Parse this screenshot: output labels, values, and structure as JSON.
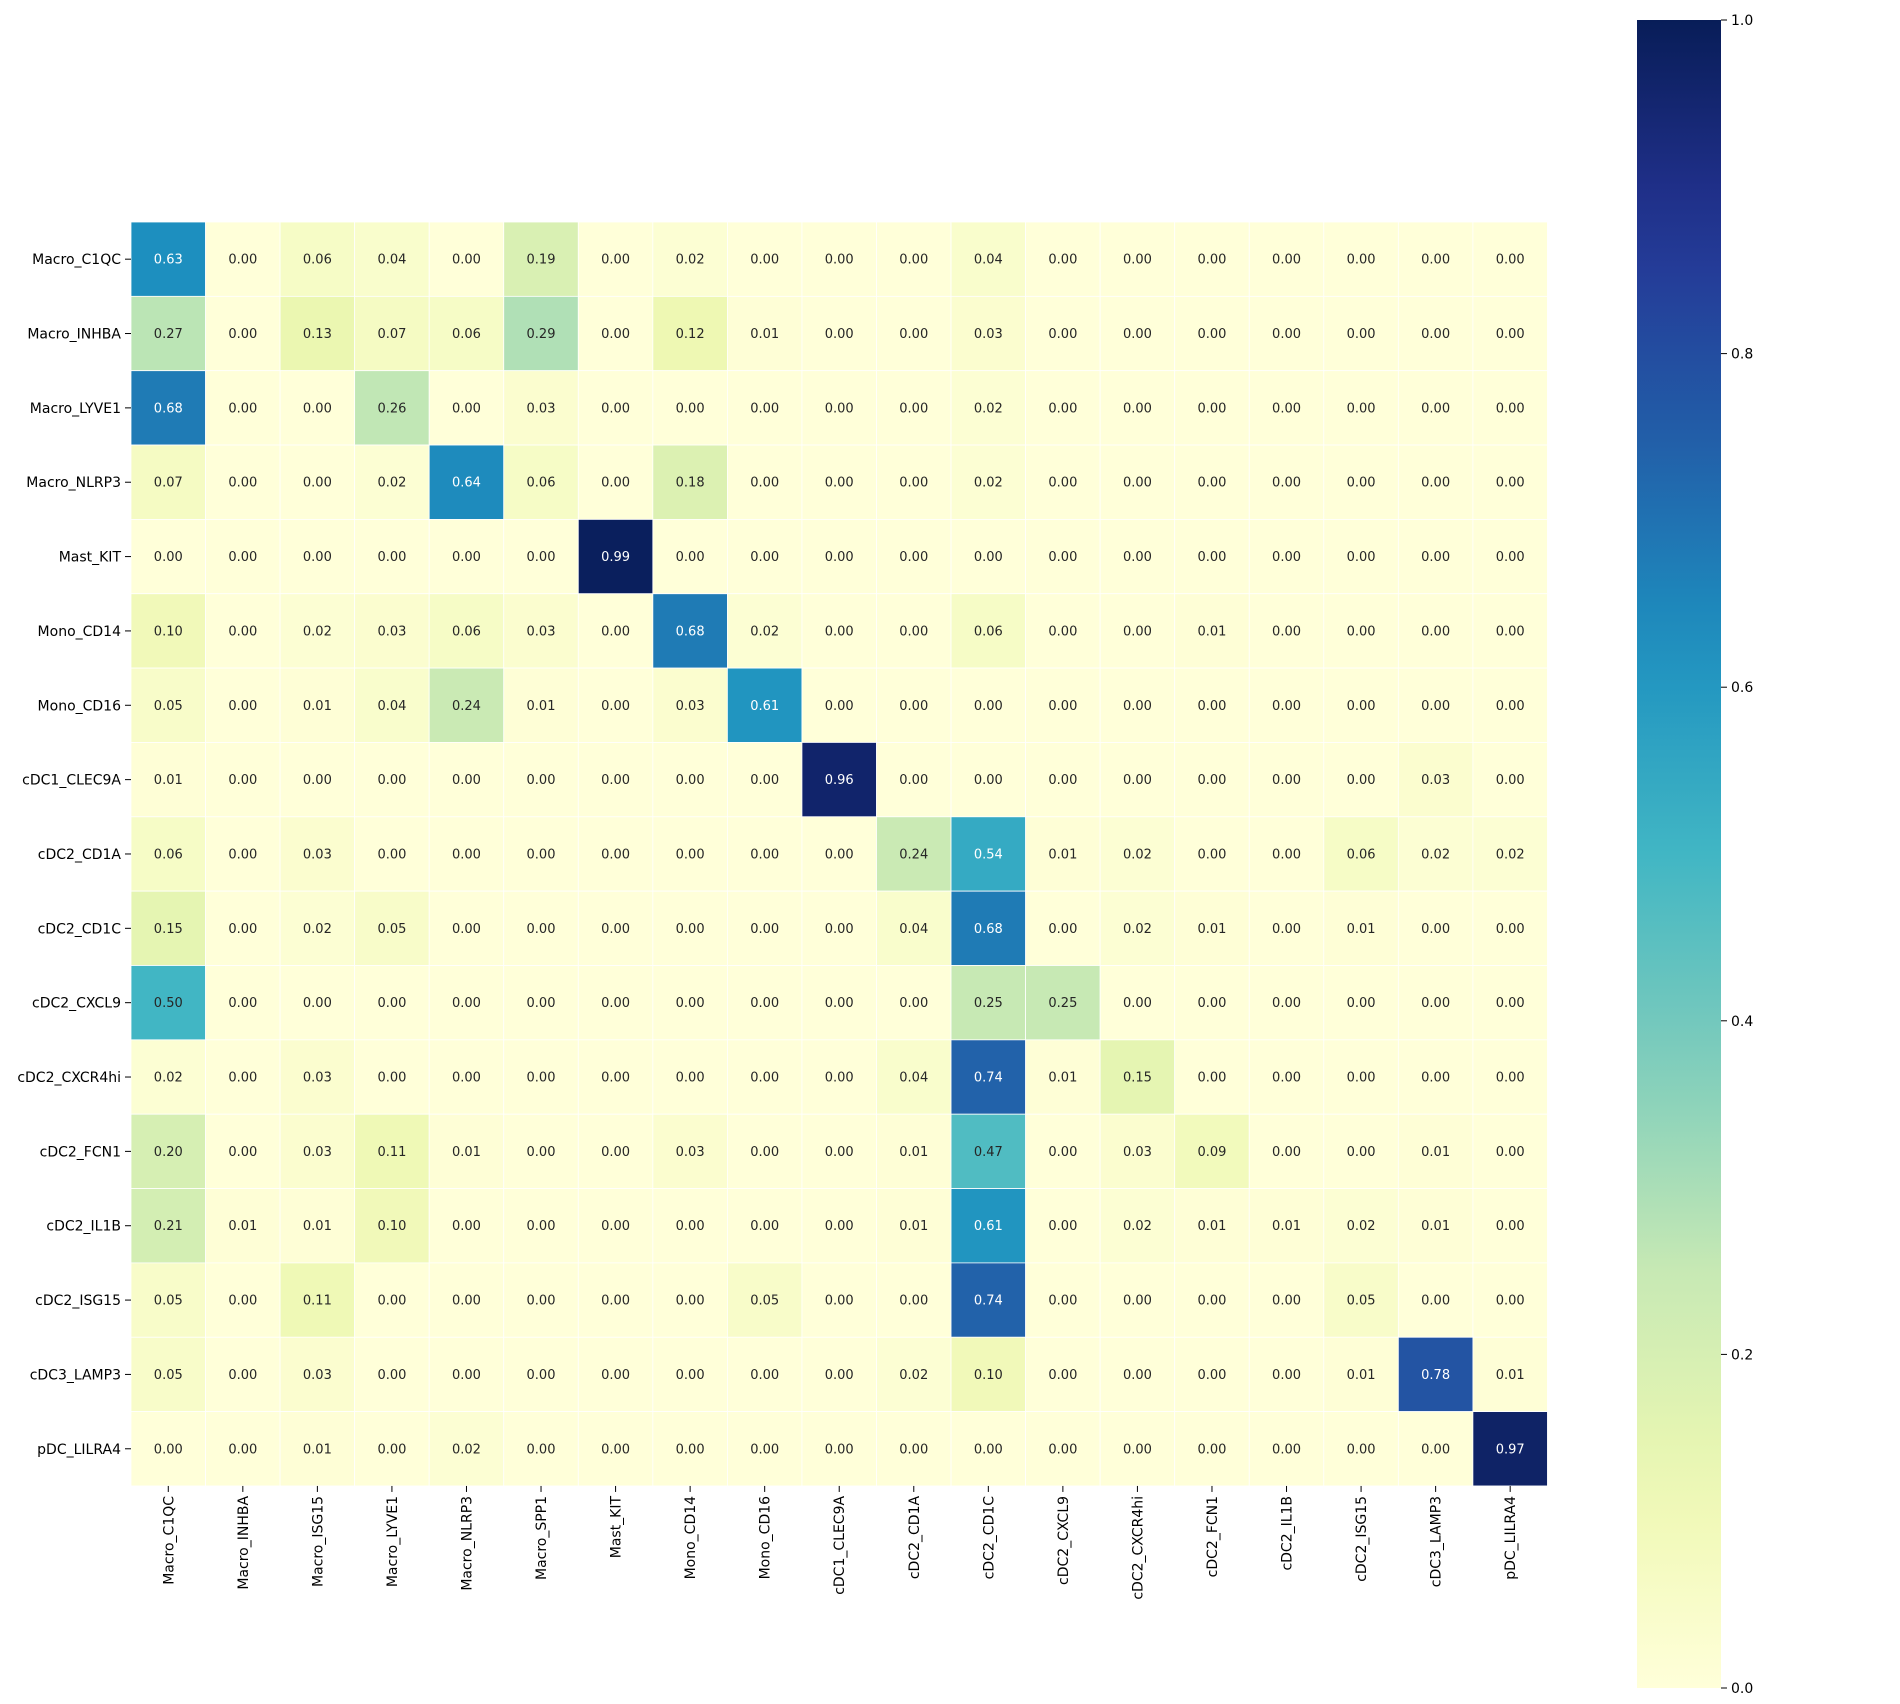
{
  "chart_data": {
    "type": "heatmap",
    "title": "",
    "xlabel": "",
    "ylabel": "",
    "rows": [
      "Macro_C1QC",
      "Macro_INHBA",
      "Macro_LYVE1",
      "Macro_NLRP3",
      "Mast_KIT",
      "Mono_CD14",
      "Mono_CD16",
      "cDC1_CLEC9A",
      "cDC2_CD1A",
      "cDC2_CD1C",
      "cDC2_CXCL9",
      "cDC2_CXCR4hi",
      "cDC2_FCN1",
      "cDC2_IL1B",
      "cDC2_ISG15",
      "cDC3_LAMP3",
      "pDC_LILRA4"
    ],
    "columns": [
      "Macro_C1QC",
      "Macro_INHBA",
      "Macro_ISG15",
      "Macro_LYVE1",
      "Macro_NLRP3",
      "Macro_SPP1",
      "Mast_KIT",
      "Mono_CD14",
      "Mono_CD16",
      "cDC1_CLEC9A",
      "cDC2_CD1A",
      "cDC2_CD1C",
      "cDC2_CXCL9",
      "cDC2_CXCR4hi",
      "cDC2_FCN1",
      "cDC2_IL1B",
      "cDC2_ISG15",
      "cDC3_LAMP3",
      "pDC_LILRA4"
    ],
    "values": [
      [
        0.63,
        0.0,
        0.06,
        0.04,
        0.0,
        0.19,
        0.0,
        0.02,
        0.0,
        0.0,
        0.0,
        0.04,
        0.0,
        0.0,
        0.0,
        0.0,
        0.0,
        0.0,
        0.0
      ],
      [
        0.27,
        0.0,
        0.13,
        0.07,
        0.06,
        0.29,
        0.0,
        0.12,
        0.01,
        0.0,
        0.0,
        0.03,
        0.0,
        0.0,
        0.0,
        0.0,
        0.0,
        0.0,
        0.0
      ],
      [
        0.68,
        0.0,
        0.0,
        0.26,
        0.0,
        0.03,
        0.0,
        0.0,
        0.0,
        0.0,
        0.0,
        0.02,
        0.0,
        0.0,
        0.0,
        0.0,
        0.0,
        0.0,
        0.0
      ],
      [
        0.07,
        0.0,
        0.0,
        0.02,
        0.64,
        0.06,
        0.0,
        0.18,
        0.0,
        0.0,
        0.0,
        0.02,
        0.0,
        0.0,
        0.0,
        0.0,
        0.0,
        0.0,
        0.0
      ],
      [
        0.0,
        0.0,
        0.0,
        0.0,
        0.0,
        0.0,
        0.99,
        0.0,
        0.0,
        0.0,
        0.0,
        0.0,
        0.0,
        0.0,
        0.0,
        0.0,
        0.0,
        0.0,
        0.0
      ],
      [
        0.1,
        0.0,
        0.02,
        0.03,
        0.06,
        0.03,
        0.0,
        0.68,
        0.02,
        0.0,
        0.0,
        0.06,
        0.0,
        0.0,
        0.01,
        0.0,
        0.0,
        0.0,
        0.0
      ],
      [
        0.05,
        0.0,
        0.01,
        0.04,
        0.24,
        0.01,
        0.0,
        0.03,
        0.61,
        0.0,
        0.0,
        0.0,
        0.0,
        0.0,
        0.0,
        0.0,
        0.0,
        0.0,
        0.0
      ],
      [
        0.01,
        0.0,
        0.0,
        0.0,
        0.0,
        0.0,
        0.0,
        0.0,
        0.0,
        0.96,
        0.0,
        0.0,
        0.0,
        0.0,
        0.0,
        0.0,
        0.0,
        0.03,
        0.0
      ],
      [
        0.06,
        0.0,
        0.03,
        0.0,
        0.0,
        0.0,
        0.0,
        0.0,
        0.0,
        0.0,
        0.24,
        0.54,
        0.01,
        0.02,
        0.0,
        0.0,
        0.06,
        0.02,
        0.02
      ],
      [
        0.15,
        0.0,
        0.02,
        0.05,
        0.0,
        0.0,
        0.0,
        0.0,
        0.0,
        0.0,
        0.04,
        0.68,
        0.0,
        0.02,
        0.01,
        0.0,
        0.01,
        0.0,
        0.0
      ],
      [
        0.5,
        0.0,
        0.0,
        0.0,
        0.0,
        0.0,
        0.0,
        0.0,
        0.0,
        0.0,
        0.0,
        0.25,
        0.25,
        0.0,
        0.0,
        0.0,
        0.0,
        0.0,
        0.0
      ],
      [
        0.02,
        0.0,
        0.03,
        0.0,
        0.0,
        0.0,
        0.0,
        0.0,
        0.0,
        0.0,
        0.04,
        0.74,
        0.01,
        0.15,
        0.0,
        0.0,
        0.0,
        0.0,
        0.0
      ],
      [
        0.2,
        0.0,
        0.03,
        0.11,
        0.01,
        0.0,
        0.0,
        0.03,
        0.0,
        0.0,
        0.01,
        0.47,
        0.0,
        0.03,
        0.09,
        0.0,
        0.0,
        0.01,
        0.0
      ],
      [
        0.21,
        0.01,
        0.01,
        0.1,
        0.0,
        0.0,
        0.0,
        0.0,
        0.0,
        0.0,
        0.01,
        0.61,
        0.0,
        0.02,
        0.01,
        0.01,
        0.02,
        0.01,
        0.0
      ],
      [
        0.05,
        0.0,
        0.11,
        0.0,
        0.0,
        0.0,
        0.0,
        0.0,
        0.05,
        0.0,
        0.0,
        0.74,
        0.0,
        0.0,
        0.0,
        0.0,
        0.05,
        0.0,
        0.0
      ],
      [
        0.05,
        0.0,
        0.03,
        0.0,
        0.0,
        0.0,
        0.0,
        0.0,
        0.0,
        0.0,
        0.02,
        0.1,
        0.0,
        0.0,
        0.0,
        0.0,
        0.01,
        0.78,
        0.01
      ],
      [
        0.0,
        0.0,
        0.01,
        0.0,
        0.02,
        0.0,
        0.0,
        0.0,
        0.0,
        0.0,
        0.0,
        0.0,
        0.0,
        0.0,
        0.0,
        0.0,
        0.0,
        0.0,
        0.97
      ]
    ],
    "value_format": "0.00",
    "colormap": "YlGnBu",
    "vmin": 0.0,
    "vmax": 1.0,
    "colorbar": {
      "ticks": [
        0.0,
        0.2,
        0.4,
        0.6,
        0.8,
        1.0
      ],
      "tick_labels": [
        "0.0",
        "0.2",
        "0.4",
        "0.6",
        "0.8",
        "1.0"
      ],
      "position": "right"
    },
    "grid": false,
    "cell_separator_color": "#ffffff"
  }
}
